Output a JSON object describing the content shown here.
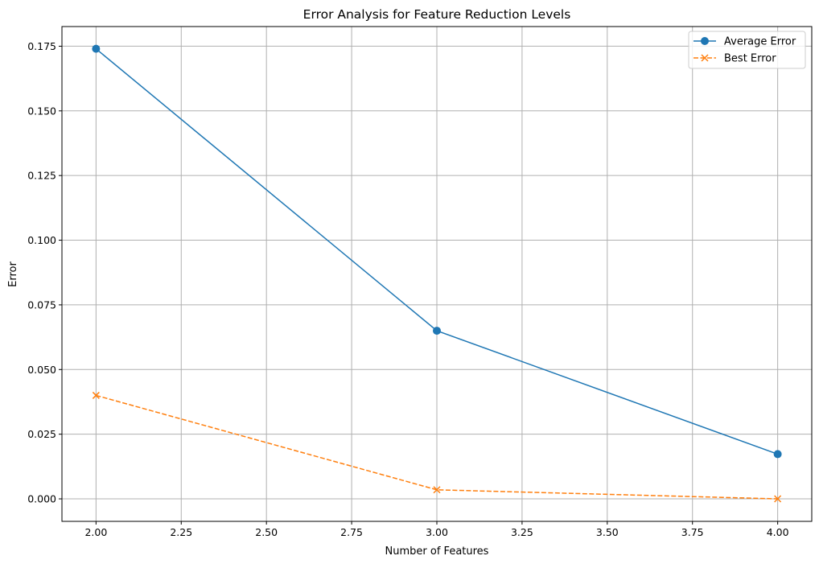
{
  "chart_data": {
    "type": "line",
    "title": "Error Analysis for Feature Reduction Levels",
    "xlabel": "Number of Features",
    "ylabel": "Error",
    "xlim": [
      1.9,
      4.1
    ],
    "ylim": [
      -0.0087,
      0.1826
    ],
    "grid": true,
    "legend_position": "top-right",
    "x_ticks": [
      "2.00",
      "2.25",
      "2.50",
      "2.75",
      "3.00",
      "3.25",
      "3.50",
      "3.75",
      "4.00"
    ],
    "y_ticks": [
      "0.000",
      "0.025",
      "0.050",
      "0.075",
      "0.100",
      "0.125",
      "0.150",
      "0.175"
    ],
    "x": [
      2,
      3,
      4
    ],
    "series": [
      {
        "name": "Average Error",
        "values": [
          0.174,
          0.065,
          0.0173
        ],
        "color": "#1f77b4",
        "marker": "circle",
        "line_style": "solid"
      },
      {
        "name": "Best Error",
        "values": [
          0.04,
          0.0035,
          0.0
        ],
        "color": "#ff7f0e",
        "marker": "x",
        "line_style": "dashed"
      }
    ]
  }
}
